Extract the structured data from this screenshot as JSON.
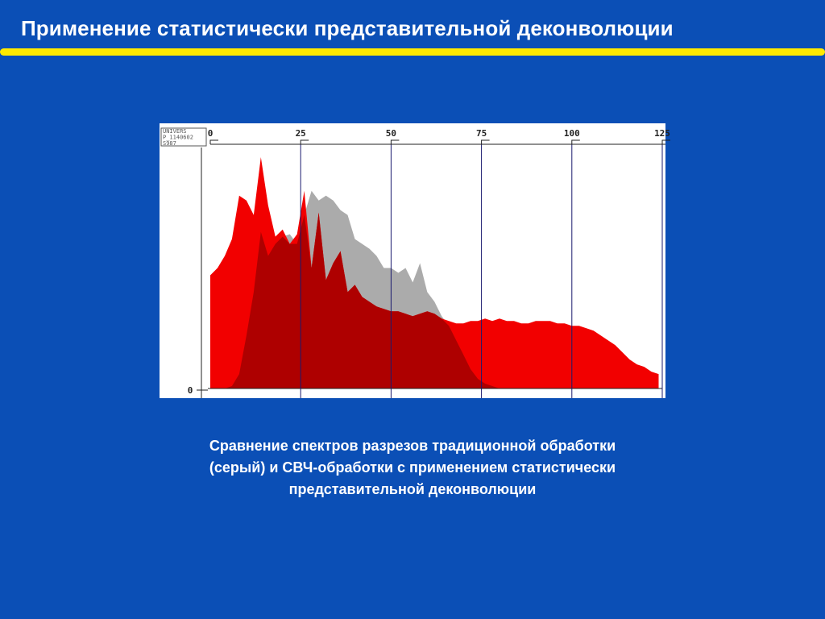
{
  "slide": {
    "title": "Применение статистически представительной деконволюции",
    "caption": [
      "Сравнение спектров разрезов традиционной обработки",
      "(серый) и СВЧ-обработки с применением статистически",
      "представительной деконволюции"
    ]
  },
  "colors": {
    "background": "#0b4fb6",
    "title_rule": "#ffea00",
    "red_series": "#f20000",
    "gray_series": "#ababab",
    "overlap": "#ae0000"
  },
  "chart_data": {
    "type": "area",
    "label_box": [
      "UNIVERS",
      "P_1140602",
      "S987"
    ],
    "x_ticks": [
      0,
      25,
      50,
      75,
      100,
      125
    ],
    "y_ticks": [
      "0"
    ],
    "xlim": [
      0,
      125
    ],
    "ylim": [
      0,
      100
    ],
    "grid": true,
    "x": [
      0,
      2,
      4,
      6,
      8,
      10,
      12,
      14,
      16,
      18,
      20,
      22,
      24,
      26,
      28,
      30,
      32,
      34,
      36,
      38,
      40,
      42,
      44,
      46,
      48,
      50,
      52,
      54,
      56,
      58,
      60,
      62,
      64,
      66,
      68,
      70,
      72,
      74,
      76,
      78,
      80,
      82,
      84,
      86,
      88,
      90,
      92,
      94,
      96,
      98,
      100,
      102,
      104,
      106,
      108,
      110,
      112,
      114,
      116,
      118,
      120,
      122,
      124
    ],
    "series": [
      {
        "values": [
          47,
          50,
          55,
          62,
          80,
          78,
          72,
          96,
          76,
          63,
          66,
          60,
          64,
          82,
          50,
          73,
          45,
          52,
          57,
          40,
          43,
          38,
          36,
          34,
          33,
          32,
          32,
          31,
          30,
          31,
          32,
          31,
          29,
          28,
          27,
          27,
          28,
          28,
          29,
          28,
          29,
          28,
          28,
          27,
          27,
          28,
          28,
          28,
          27,
          27,
          26,
          26,
          25,
          24,
          22,
          20,
          18,
          15,
          12,
          10,
          9,
          7,
          6
        ]
      },
      {
        "values": [
          0,
          0,
          0,
          1,
          6,
          22,
          40,
          65,
          55,
          60,
          63,
          64,
          60,
          72,
          82,
          78,
          80,
          78,
          74,
          72,
          62,
          60,
          58,
          55,
          50,
          50,
          48,
          50,
          44,
          52,
          40,
          36,
          30,
          26,
          20,
          14,
          8,
          4,
          2,
          1,
          0,
          0,
          0,
          0,
          0,
          0,
          0,
          0,
          0,
          0,
          0,
          0,
          0,
          0,
          0,
          0,
          0,
          0,
          0,
          0,
          0,
          0,
          0
        ]
      }
    ]
  }
}
